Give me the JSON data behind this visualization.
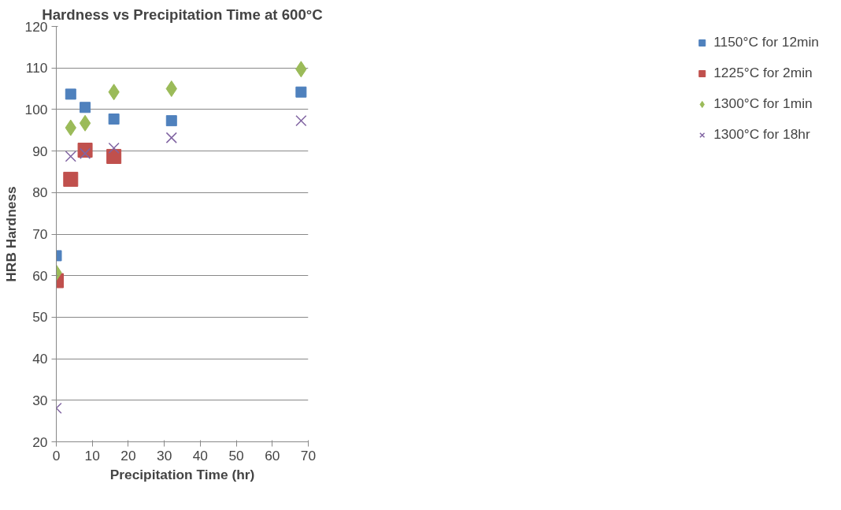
{
  "chart_data": {
    "type": "scatter",
    "title": "Hardness vs Precipitation Time at 600°C",
    "xlabel": "Precipitation Time (hr)",
    "ylabel": "HRB Hardness",
    "x": [
      0,
      4,
      8,
      16,
      32,
      68
    ],
    "series": [
      {
        "name": "1150°C for 12min",
        "color": "#4f81bd",
        "marker": "square",
        "values": [
          64.8,
          103.7,
          100.5,
          97.7,
          97.3,
          104.2
        ]
      },
      {
        "name": "1225°C for 2min",
        "color": "#c0504d",
        "marker": "square",
        "values": [
          58.8,
          83.2,
          90.2,
          88.7,
          null,
          null
        ]
      },
      {
        "name": "1300°C for 1min",
        "color": "#9bbb59",
        "marker": "diamond",
        "values": [
          60.7,
          95.6,
          96.7,
          104.2,
          105.0,
          109.7
        ]
      },
      {
        "name": "1300°C for 18hr",
        "color": "#8064a2",
        "marker": "cross",
        "values": [
          28.1,
          88.7,
          89.4,
          90.7,
          93.2,
          97.3
        ]
      }
    ],
    "xlim": [
      0,
      70
    ],
    "xticks": [
      0,
      10,
      20,
      30,
      40,
      50,
      60,
      70
    ],
    "ylim": [
      20,
      120
    ],
    "yticks": [
      20,
      30,
      40,
      50,
      60,
      70,
      80,
      90,
      100,
      110,
      120
    ],
    "grid": "y",
    "legend": "right"
  }
}
